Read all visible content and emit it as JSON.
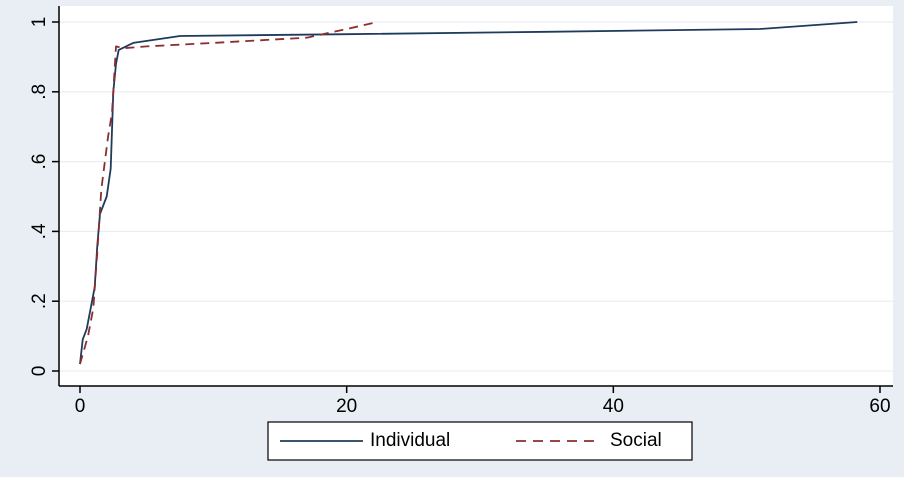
{
  "chart_data": {
    "type": "line",
    "title": "",
    "xlabel": "",
    "ylabel": "",
    "xlim": [
      0,
      60
    ],
    "ylim": [
      0,
      1
    ],
    "x_ticks": [
      0,
      20,
      40,
      60
    ],
    "x_tick_labels": [
      "0",
      "20",
      "40",
      "60"
    ],
    "y_ticks": [
      0,
      0.2,
      0.4,
      0.6,
      0.8,
      1
    ],
    "y_tick_labels": [
      "0",
      ".2",
      ".4",
      ".6",
      ".8",
      "1"
    ],
    "grid": true,
    "legend_position": "bottom",
    "series": [
      {
        "name": "Individual",
        "style": "solid",
        "color": "#1f3b5c",
        "points": [
          [
            0,
            0.02
          ],
          [
            0.2,
            0.09
          ],
          [
            0.5,
            0.12
          ],
          [
            0.8,
            0.18
          ],
          [
            1.1,
            0.24
          ],
          [
            1.3,
            0.36
          ],
          [
            1.5,
            0.45
          ],
          [
            1.8,
            0.48
          ],
          [
            2.0,
            0.5
          ],
          [
            2.3,
            0.58
          ],
          [
            2.5,
            0.8
          ],
          [
            2.7,
            0.88
          ],
          [
            2.9,
            0.92
          ],
          [
            4.0,
            0.94
          ],
          [
            7.5,
            0.96
          ],
          [
            20,
            0.965
          ],
          [
            35,
            0.972
          ],
          [
            51,
            0.98
          ],
          [
            58.3,
            1.0
          ]
        ]
      },
      {
        "name": "Social",
        "style": "dashed",
        "color": "#8a2f2f",
        "points": [
          [
            0,
            0.02
          ],
          [
            0.6,
            0.1
          ],
          [
            1.0,
            0.18
          ],
          [
            1.3,
            0.34
          ],
          [
            1.6,
            0.52
          ],
          [
            2.1,
            0.67
          ],
          [
            2.4,
            0.74
          ],
          [
            2.7,
            0.93
          ],
          [
            3.3,
            0.925
          ],
          [
            5,
            0.93
          ],
          [
            10,
            0.94
          ],
          [
            17,
            0.955
          ],
          [
            20,
            0.98
          ],
          [
            22.3,
            1.0
          ]
        ]
      }
    ]
  }
}
